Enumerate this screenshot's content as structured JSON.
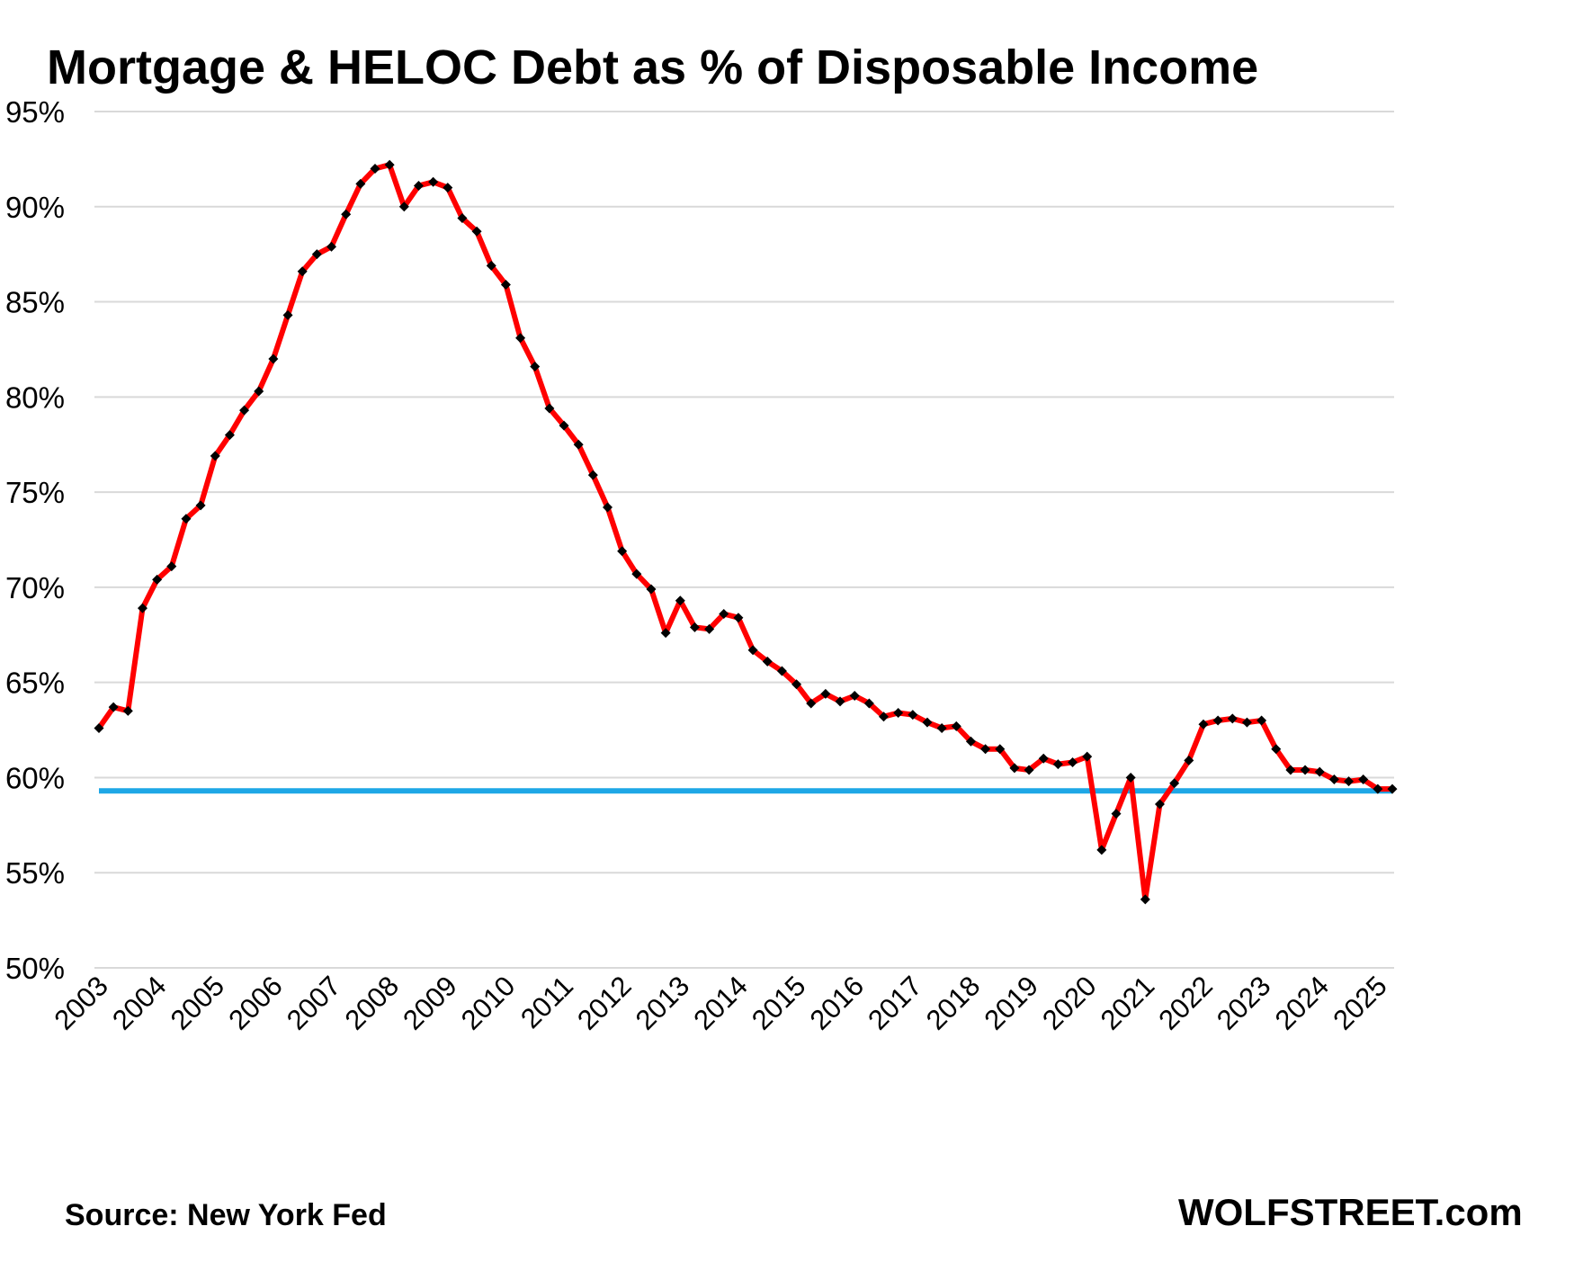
{
  "title": "Mortgage & HELOC Debt as % of Disposable Income",
  "source": "Source: New York Fed",
  "brand": "WOLFSTREET.com",
  "colors": {
    "line": "#ff0000",
    "marker": "#000000",
    "reference": "#1ea7e6",
    "grid": "#d9d9d9"
  },
  "chart_data": {
    "type": "line",
    "title": "Mortgage & HELOC Debt as % of Disposable Income",
    "xlabel": "",
    "ylabel": "",
    "ylim": [
      50,
      95
    ],
    "yticks": [
      "50%",
      "55%",
      "60%",
      "65%",
      "70%",
      "75%",
      "80%",
      "85%",
      "90%",
      "95%"
    ],
    "xticks": [
      "2003",
      "2004",
      "2005",
      "2006",
      "2007",
      "2008",
      "2009",
      "2010",
      "2011",
      "2012",
      "2013",
      "2014",
      "2015",
      "2016",
      "2017",
      "2018",
      "2019",
      "2020",
      "2021",
      "2022",
      "2023",
      "2024",
      "2025"
    ],
    "grid": "horizontal",
    "x_start": 2003,
    "points_per_year": 4,
    "series": [
      {
        "values": [
          62.6,
          63.7,
          63.5,
          68.9,
          70.4,
          71.1,
          73.6,
          74.3,
          76.9,
          78.0,
          79.3,
          80.3,
          82.0,
          84.3,
          86.6,
          87.5,
          87.9,
          89.6,
          91.2,
          92.0,
          92.2,
          90.0,
          91.1,
          91.3,
          91.0,
          89.4,
          88.7,
          86.9,
          85.9,
          83.1,
          81.6,
          79.4,
          78.5,
          77.5,
          75.9,
          74.2,
          71.9,
          70.7,
          69.9,
          67.6,
          69.3,
          67.9,
          67.8,
          68.6,
          68.4,
          66.7,
          66.1,
          65.6,
          64.9,
          63.9,
          64.4,
          64.0,
          64.3,
          63.9,
          63.2,
          63.4,
          63.3,
          62.9,
          62.6,
          62.7,
          61.9,
          61.5,
          61.5,
          60.5,
          60.4,
          61.0,
          60.7,
          60.8,
          61.1,
          56.2,
          58.1,
          60.0,
          53.6,
          58.6,
          59.7,
          60.9,
          62.8,
          63.0,
          63.1,
          62.9,
          63.0,
          61.5,
          60.4,
          60.4,
          60.3,
          59.9,
          59.8,
          59.9,
          59.4,
          59.4
        ]
      }
    ],
    "reference_line": {
      "value": 59.3,
      "x_from": 2003,
      "x_to": 2025.25
    }
  }
}
